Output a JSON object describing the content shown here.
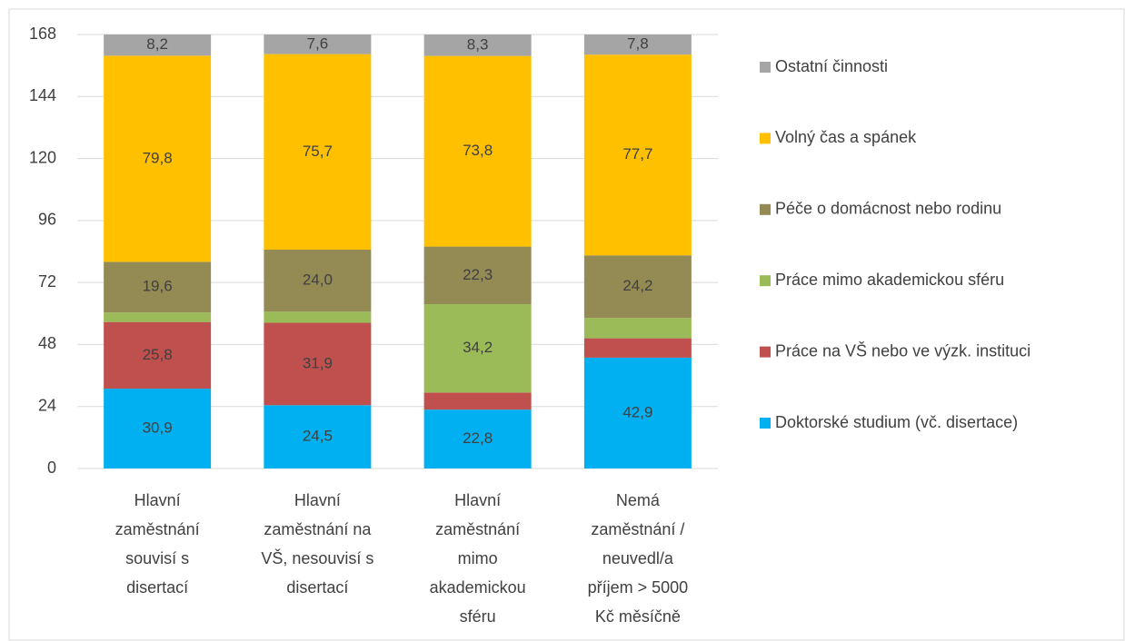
{
  "chart_data": {
    "type": "stacked_bar",
    "categories": [
      [
        "Hlavní",
        "zaměstnání",
        "souvisí s",
        "disertací"
      ],
      [
        "Hlavní",
        "zaměstnání na",
        "VŠ, nesouvisí s",
        "disertací"
      ],
      [
        "Hlavní",
        "zaměstnání",
        "mimo",
        "akademickou",
        "sféru"
      ],
      [
        "Nemá",
        "zaměstnání /",
        "neuvedl/a",
        "příjem > 5000",
        "Kč měsíčně"
      ]
    ],
    "series": [
      {
        "name": "Doktorské studium (vč. disertace)",
        "color": "#00b0f0",
        "values": [
          30.9,
          24.5,
          22.8,
          42.9
        ],
        "value_labels": [
          "30,9",
          "24,5",
          "22,8",
          "42,9"
        ]
      },
      {
        "name": "Práce na VŠ nebo ve výzk. instituci",
        "color": "#c0504d",
        "values": [
          25.8,
          31.9,
          6.6,
          7.5
        ],
        "value_labels": [
          "25,8",
          "31,9",
          null,
          null
        ]
      },
      {
        "name": "Práce mimo akademickou sféru",
        "color": "#9bbb59",
        "values": [
          3.7,
          4.3,
          34.2,
          7.9
        ],
        "value_labels": [
          null,
          null,
          "34,2",
          null
        ]
      },
      {
        "name": "Péče o domácnost nebo rodinu",
        "color": "#948a54",
        "values": [
          19.6,
          24.0,
          22.3,
          24.2
        ],
        "value_labels": [
          "19,6",
          "24,0",
          "22,3",
          "24,2"
        ]
      },
      {
        "name": "Volný čas a spánek",
        "color": "#ffc000",
        "values": [
          79.8,
          75.7,
          73.8,
          77.7
        ],
        "value_labels": [
          "79,8",
          "75,7",
          "73,8",
          "77,7"
        ]
      },
      {
        "name": "Ostatní činnosti",
        "color": "#a5a5a5",
        "values": [
          8.2,
          7.6,
          8.3,
          7.8
        ],
        "value_labels": [
          "8,2",
          "7,6",
          "8,3",
          "7,8"
        ]
      }
    ],
    "ylim": [
      0,
      168
    ],
    "yticks": [
      0,
      24,
      48,
      72,
      96,
      120,
      144,
      168
    ],
    "grid": true,
    "legend": "right"
  }
}
